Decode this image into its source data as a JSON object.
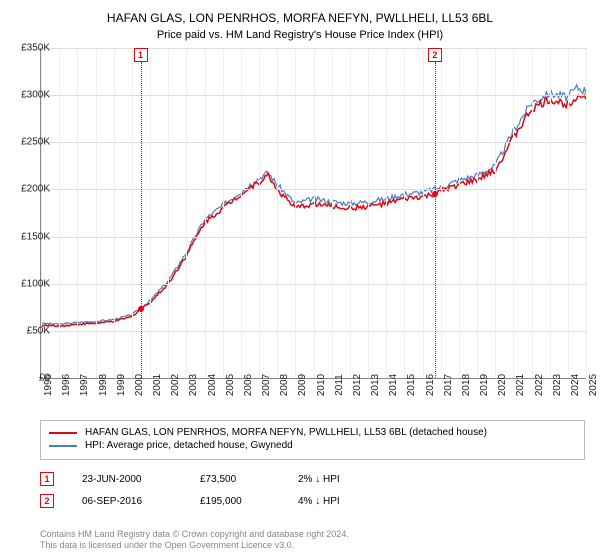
{
  "title": "HAFAN GLAS, LON PENRHOS, MORFA NEFYN, PWLLHELI, LL53 6BL",
  "subtitle": "Price paid vs. HM Land Registry's House Price Index (HPI)",
  "chart": {
    "type": "line",
    "background_color": "#ffffff",
    "grid_color": "#dddddd",
    "axis_color": "#888888",
    "text_color": "#222222",
    "ylim": [
      0,
      350000
    ],
    "ytick_step": 50000,
    "yticks": [
      "£0",
      "£50K",
      "£100K",
      "£150K",
      "£200K",
      "£250K",
      "£300K",
      "£350K"
    ],
    "xlim": [
      1995,
      2025
    ],
    "xticks": [
      "1995",
      "1996",
      "1997",
      "1998",
      "1999",
      "2000",
      "2001",
      "2002",
      "2003",
      "2004",
      "2005",
      "2006",
      "2007",
      "2008",
      "2009",
      "2010",
      "2011",
      "2012",
      "2013",
      "2014",
      "2015",
      "2016",
      "2017",
      "2018",
      "2019",
      "2020",
      "2021",
      "2022",
      "2023",
      "2024",
      "2025"
    ],
    "series": [
      {
        "name": "HAFAN GLAS, LON PENRHOS, MORFA NEFYN, PWLLHELI, LL53 6BL (detached house)",
        "color": "#e30613",
        "line_width": 1.5,
        "data": [
          [
            1995,
            56000
          ],
          [
            1996,
            55000
          ],
          [
            1997,
            57000
          ],
          [
            1998,
            58000
          ],
          [
            1999,
            60000
          ],
          [
            2000,
            65000
          ],
          [
            2000.5,
            73500
          ],
          [
            2001,
            80000
          ],
          [
            2002,
            100000
          ],
          [
            2003,
            130000
          ],
          [
            2004,
            165000
          ],
          [
            2005,
            180000
          ],
          [
            2006,
            195000
          ],
          [
            2007,
            208000
          ],
          [
            2007.5,
            215000
          ],
          [
            2008,
            200000
          ],
          [
            2009,
            180000
          ],
          [
            2010,
            185000
          ],
          [
            2011,
            182000
          ],
          [
            2012,
            180000
          ],
          [
            2013,
            182000
          ],
          [
            2014,
            185000
          ],
          [
            2015,
            190000
          ],
          [
            2016,
            192000
          ],
          [
            2016.7,
            195000
          ],
          [
            2017,
            198000
          ],
          [
            2018,
            205000
          ],
          [
            2019,
            210000
          ],
          [
            2020,
            220000
          ],
          [
            2021,
            255000
          ],
          [
            2022,
            285000
          ],
          [
            2023,
            295000
          ],
          [
            2024,
            290000
          ],
          [
            2024.5,
            300000
          ],
          [
            2025,
            298000
          ]
        ]
      },
      {
        "name": "HPI: Average price, detached house, Gwynedd",
        "color": "#4a7ebb",
        "line_width": 1.2,
        "data": [
          [
            1995,
            58000
          ],
          [
            1996,
            57000
          ],
          [
            1997,
            59000
          ],
          [
            1998,
            60000
          ],
          [
            1999,
            62000
          ],
          [
            2000,
            67000
          ],
          [
            2001,
            82000
          ],
          [
            2002,
            103000
          ],
          [
            2003,
            133000
          ],
          [
            2004,
            168000
          ],
          [
            2005,
            183000
          ],
          [
            2006,
            198000
          ],
          [
            2007,
            212000
          ],
          [
            2007.5,
            218000
          ],
          [
            2008,
            205000
          ],
          [
            2009,
            185000
          ],
          [
            2010,
            190000
          ],
          [
            2011,
            187000
          ],
          [
            2012,
            185000
          ],
          [
            2013,
            187000
          ],
          [
            2014,
            190000
          ],
          [
            2015,
            195000
          ],
          [
            2016,
            197000
          ],
          [
            2017,
            202000
          ],
          [
            2018,
            210000
          ],
          [
            2019,
            215000
          ],
          [
            2020,
            225000
          ],
          [
            2021,
            262000
          ],
          [
            2022,
            292000
          ],
          [
            2023,
            302000
          ],
          [
            2024,
            298000
          ],
          [
            2024.5,
            308000
          ],
          [
            2025,
            305000
          ]
        ]
      }
    ],
    "markers": [
      {
        "n": "1",
        "year": 2000.48,
        "price": 73500
      },
      {
        "n": "2",
        "year": 2016.68,
        "price": 195000
      }
    ]
  },
  "legend": {
    "items": [
      {
        "color": "#e30613",
        "label": "HAFAN GLAS, LON PENRHOS, MORFA NEFYN, PWLLHELI, LL53 6BL (detached house)"
      },
      {
        "color": "#4a7ebb",
        "label": "HPI: Average price, detached house, Gwynedd"
      }
    ]
  },
  "sales": [
    {
      "n": "1",
      "date": "23-JUN-2000",
      "price": "£73,500",
      "diff": "2% ↓ HPI"
    },
    {
      "n": "2",
      "date": "06-SEP-2016",
      "price": "£195,000",
      "diff": "4% ↓ HPI"
    }
  ],
  "footer": {
    "line1": "Contains HM Land Registry data © Crown copyright and database right 2024.",
    "line2": "This data is licensed under the Open Government Licence v3.0."
  }
}
